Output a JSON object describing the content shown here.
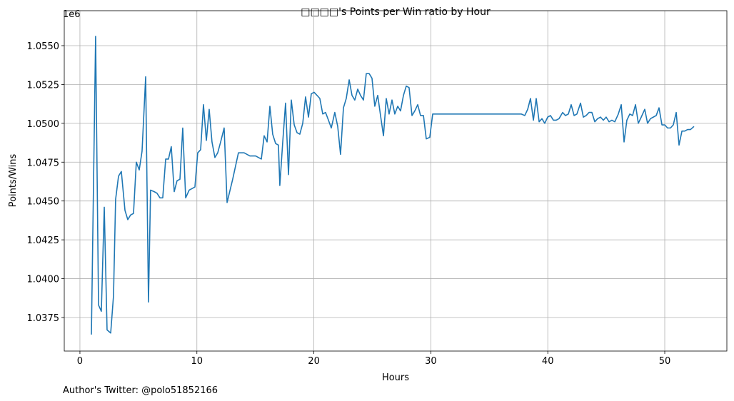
{
  "chart_data": {
    "type": "line",
    "title": "□□□□'s Points per Win ratio by Hour",
    "x_label": "Hours",
    "y_label": "Points/Wins",
    "y_offset_label": "1e6",
    "footnote": "Author's Twitter: @polo51852166",
    "grid": true,
    "xlim": [
      -1.34,
      55.31
    ],
    "ylim": [
      1.03534,
      1.05725
    ],
    "xticks": [
      0,
      10,
      20,
      30,
      40,
      50
    ],
    "yticks": [
      1.0375,
      {
        "value": 1.04,
        "label": "1.0400"
      },
      {
        "value": 1.0425,
        "label": "1.0425"
      },
      {
        "value": 1.045,
        "label": "1.0450"
      },
      {
        "value": 1.0475,
        "label": "1.0475"
      },
      {
        "value": 1.05,
        "label": "1.0500"
      },
      {
        "value": 1.0525,
        "label": "1.0525"
      },
      {
        "value": 1.055,
        "label": "1.0550"
      }
    ],
    "series": [
      {
        "name": "Points/Wins",
        "color": "#1f77b4",
        "x": [
          0.98,
          1.34,
          1.59,
          1.83,
          2.08,
          2.32,
          2.63,
          2.87,
          3.05,
          3.3,
          3.54,
          3.85,
          4.09,
          4.33,
          4.58,
          4.82,
          5.07,
          5.31,
          5.62,
          5.86,
          6.04,
          6.35,
          6.59,
          6.84,
          7.08,
          7.33,
          7.57,
          7.81,
          8.06,
          8.3,
          8.55,
          8.79,
          9.04,
          9.34,
          9.58,
          9.83,
          10.07,
          10.32,
          10.56,
          10.81,
          11.05,
          11.29,
          11.54,
          11.78,
          12.03,
          12.33,
          12.58,
          13.06,
          13.55,
          14.04,
          14.53,
          15.02,
          15.51,
          15.75,
          16.0,
          16.24,
          16.48,
          16.73,
          16.97,
          17.09,
          17.34,
          17.58,
          17.83,
          18.07,
          18.32,
          18.56,
          18.8,
          19.05,
          19.29,
          19.54,
          19.78,
          20.02,
          20.27,
          20.51,
          20.76,
          21.0,
          21.25,
          21.49,
          21.79,
          22.04,
          22.28,
          22.53,
          22.77,
          23.02,
          23.26,
          23.5,
          23.75,
          23.99,
          24.24,
          24.48,
          24.73,
          24.97,
          25.21,
          25.46,
          25.7,
          25.95,
          26.19,
          26.43,
          26.68,
          26.92,
          27.17,
          27.41,
          27.66,
          27.9,
          28.14,
          28.39,
          28.63,
          28.88,
          29.12,
          29.37,
          29.61,
          29.91,
          30.16,
          37.24,
          37.73,
          38.03,
          38.28,
          38.52,
          38.77,
          39.01,
          39.26,
          39.5,
          39.74,
          39.99,
          40.23,
          40.48,
          40.72,
          40.96,
          41.27,
          41.51,
          41.76,
          42.0,
          42.25,
          42.49,
          42.8,
          43.04,
          43.28,
          43.53,
          43.77,
          44.02,
          44.26,
          44.51,
          44.75,
          44.99,
          45.24,
          45.48,
          45.73,
          46.03,
          46.28,
          46.52,
          46.76,
          47.01,
          47.25,
          47.5,
          47.74,
          47.99,
          48.29,
          48.53,
          48.78,
          49.02,
          49.27,
          49.51,
          49.76,
          50.0,
          50.24,
          50.49,
          50.73,
          50.98,
          51.22,
          51.47,
          51.71,
          51.95,
          52.2,
          52.5
        ],
        "values": [
          1.0364,
          1.0556,
          1.0383,
          1.0379,
          1.0446,
          1.0367,
          1.0365,
          1.0389,
          1.0451,
          1.0466,
          1.0469,
          1.0444,
          1.0438,
          1.0441,
          1.0442,
          1.0475,
          1.047,
          1.0482,
          1.053,
          1.0385,
          1.0457,
          1.0456,
          1.0455,
          1.0452,
          1.0452,
          1.0477,
          1.0477,
          1.0485,
          1.0456,
          1.0463,
          1.0464,
          1.0497,
          1.0452,
          1.0457,
          1.0458,
          1.0459,
          1.0481,
          1.0483,
          1.0512,
          1.0489,
          1.0509,
          1.0488,
          1.0478,
          1.0481,
          1.0488,
          1.0497,
          1.0449,
          1.0464,
          1.0481,
          1.0481,
          1.0479,
          1.0479,
          1.0477,
          1.0492,
          1.0488,
          1.0511,
          1.0493,
          1.0487,
          1.0486,
          1.046,
          1.0488,
          1.0513,
          1.0467,
          1.0515,
          1.0499,
          1.0494,
          1.0493,
          1.05,
          1.0517,
          1.0504,
          1.0519,
          1.052,
          1.0518,
          1.0516,
          1.0506,
          1.0507,
          1.0502,
          1.0497,
          1.0507,
          1.0498,
          1.048,
          1.051,
          1.0516,
          1.0528,
          1.0518,
          1.0515,
          1.0522,
          1.0518,
          1.0515,
          1.0532,
          1.0532,
          1.0529,
          1.0511,
          1.0518,
          1.0505,
          1.0492,
          1.0516,
          1.0506,
          1.0515,
          1.0506,
          1.0511,
          1.0508,
          1.0518,
          1.0524,
          1.0523,
          1.0505,
          1.0508,
          1.0512,
          1.0505,
          1.0505,
          1.049,
          1.0491,
          1.0506,
          1.0506,
          1.0506,
          1.0505,
          1.0509,
          1.0516,
          1.0502,
          1.0516,
          1.0501,
          1.0503,
          1.05,
          1.0504,
          1.0505,
          1.0502,
          1.0502,
          1.0503,
          1.0507,
          1.0505,
          1.0506,
          1.0512,
          1.0505,
          1.0506,
          1.0513,
          1.0504,
          1.0505,
          1.0507,
          1.0507,
          1.0501,
          1.0503,
          1.0504,
          1.0502,
          1.0504,
          1.0501,
          1.0502,
          1.0501,
          1.0506,
          1.0512,
          1.0488,
          1.0502,
          1.0506,
          1.0505,
          1.0512,
          1.05,
          1.0504,
          1.0509,
          1.05,
          1.0503,
          1.0504,
          1.0505,
          1.051,
          1.0499,
          1.0499,
          1.0497,
          1.0497,
          1.0499,
          1.0507,
          1.0486,
          1.0495,
          1.0495,
          1.0496,
          1.0496,
          1.0498
        ]
      }
    ]
  }
}
